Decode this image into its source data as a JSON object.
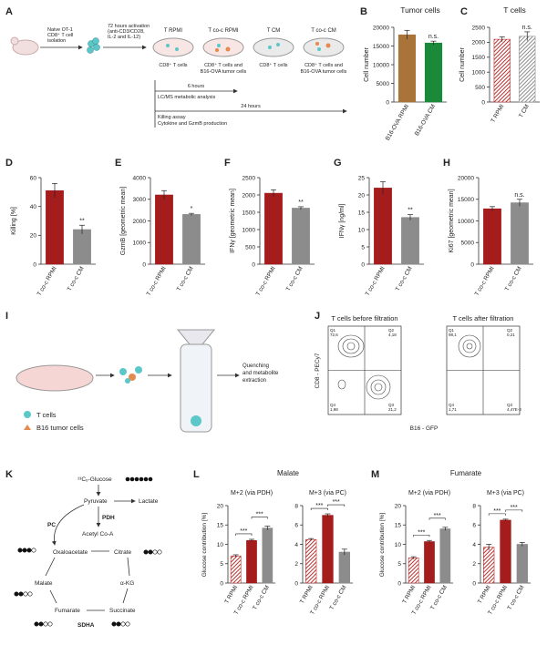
{
  "panel_a": {
    "letter": "A",
    "isolation": [
      "Naive OT-1",
      "CD8⁺ T cell",
      "isolation"
    ],
    "activation": [
      "72 hours activation",
      "(anti-CD3/CD28,",
      "IL-2 and IL-12)"
    ],
    "conditions": [
      {
        "name": "T RPMI",
        "desc": [
          "CD8⁺ T cells"
        ]
      },
      {
        "name": "T co-c RPMI",
        "desc": [
          "CD8⁺ T cells and",
          "B16-OVA tumor cells"
        ]
      },
      {
        "name": "T CM",
        "desc": [
          "CD8⁺ T cells"
        ]
      },
      {
        "name": "T co-c CM",
        "desc": [
          "CD8⁺ T cells and",
          "B16-OVA tumor cells"
        ]
      }
    ],
    "timeline": [
      {
        "duration": "6 hours",
        "assays": [
          "LC/MS metabolic analysis"
        ]
      },
      {
        "duration": "24 hours",
        "assays": [
          "Killing assay",
          "Cytokine and GzmB production"
        ]
      }
    ]
  },
  "chart_data": [
    {
      "type": "bar",
      "panel": "B",
      "title": "Tumor cells",
      "ylabel": "Cell number",
      "categories": [
        "B16-OVA RPMI",
        "B16-OVA CM"
      ],
      "values": [
        18000,
        15800
      ],
      "errors": [
        1200,
        500
      ],
      "colors": [
        "#a8743a",
        "#1a8a3a"
      ],
      "hatch": [
        false,
        false
      ],
      "ylim": [
        0,
        20000
      ],
      "yticks": [
        0,
        5000,
        10000,
        15000,
        20000
      ],
      "annotations": [
        "n.s."
      ]
    },
    {
      "type": "bar",
      "panel": "C",
      "title": "T cells",
      "ylabel": "Cell number",
      "categories": [
        "T RPMI",
        "T CM"
      ],
      "values": [
        2100,
        2200
      ],
      "errors": [
        80,
        150
      ],
      "colors": [
        "#b8312f",
        "#8c8c8c"
      ],
      "hatch": [
        true,
        true
      ],
      "ylim": [
        0,
        2500
      ],
      "yticks": [
        0,
        500,
        1000,
        1500,
        2000,
        2500
      ],
      "annotations": [
        "n.s."
      ]
    },
    {
      "type": "bar",
      "panel": "D",
      "ylabel": "Killing [%]",
      "categories": [
        "T co-c RPMI",
        "T co-c CM"
      ],
      "values": [
        51,
        24
      ],
      "errors": [
        5,
        3
      ],
      "colors": [
        "#a51c1c",
        "#8c8c8c"
      ],
      "hatch": [
        false,
        false
      ],
      "ylim": [
        0,
        60
      ],
      "yticks": [
        0,
        20,
        40,
        60
      ],
      "annotations": [
        "**"
      ]
    },
    {
      "type": "bar",
      "panel": "E",
      "ylabel": "GzmB [geometric mean]",
      "categories": [
        "T co-c RPMI",
        "T co-c CM"
      ],
      "values": [
        3200,
        2300
      ],
      "errors": [
        200,
        50
      ],
      "colors": [
        "#a51c1c",
        "#8c8c8c"
      ],
      "hatch": [
        false,
        false
      ],
      "ylim": [
        0,
        4000
      ],
      "yticks": [
        0,
        1000,
        2000,
        3000,
        4000
      ],
      "annotations": [
        "*"
      ]
    },
    {
      "type": "bar",
      "panel": "F",
      "ylabel": "IFNγ [geometric mean]",
      "categories": [
        "T co-c RPMI",
        "T co-c CM"
      ],
      "values": [
        2050,
        1620
      ],
      "errors": [
        100,
        40
      ],
      "colors": [
        "#a51c1c",
        "#8c8c8c"
      ],
      "hatch": [
        false,
        false
      ],
      "ylim": [
        0,
        2500
      ],
      "yticks": [
        0,
        500,
        1000,
        1500,
        2000,
        2500
      ],
      "annotations": [
        "**"
      ]
    },
    {
      "type": "bar",
      "panel": "G",
      "ylabel": "IFNγ [ng/ml]",
      "categories": [
        "T co-c RPMI",
        "T co-c CM"
      ],
      "values": [
        22,
        13.5
      ],
      "errors": [
        1.8,
        0.8
      ],
      "colors": [
        "#a51c1c",
        "#8c8c8c"
      ],
      "hatch": [
        false,
        false
      ],
      "ylim": [
        0,
        25
      ],
      "yticks": [
        0,
        5,
        10,
        15,
        20,
        25
      ],
      "annotations": [
        "**"
      ]
    },
    {
      "type": "bar",
      "panel": "H",
      "ylabel": "Ki67 [geometric mean]",
      "categories": [
        "T co-c RPMI",
        "T co-c CM"
      ],
      "values": [
        12800,
        14200
      ],
      "errors": [
        500,
        800
      ],
      "colors": [
        "#a51c1c",
        "#8c8c8c"
      ],
      "hatch": [
        false,
        false
      ],
      "ylim": [
        0,
        20000
      ],
      "yticks": [
        0,
        5000,
        10000,
        15000,
        20000
      ],
      "annotations": [
        "n.s."
      ]
    },
    {
      "type": "bar",
      "title": "M+2 (via PDH)",
      "categories": [
        "T RPMI",
        "T co-c RPMI",
        "T co-c CM"
      ],
      "values": [
        7,
        11,
        14.2
      ],
      "errors": [
        0.3,
        0.3,
        0.5
      ],
      "colors": [
        "#b8312f",
        "#a51c1c",
        "#8c8c8c"
      ],
      "hatch": [
        true,
        false,
        false
      ],
      "ylim": [
        0,
        20
      ],
      "yticks": [
        0,
        5,
        10,
        15,
        20
      ],
      "annotations": [
        "***",
        "***"
      ]
    },
    {
      "type": "bar",
      "title": "M+3 (via PC)",
      "categories": [
        "T RPMI",
        "T co-c RPMI",
        "T co-c CM"
      ],
      "values": [
        4.5,
        7,
        3.2
      ],
      "errors": [
        0.1,
        0.15,
        0.3
      ],
      "colors": [
        "#b8312f",
        "#a51c1c",
        "#8c8c8c"
      ],
      "hatch": [
        true,
        false,
        false
      ],
      "ylim": [
        0,
        8
      ],
      "yticks": [
        0,
        2,
        4,
        6,
        8
      ],
      "annotations": [
        "***",
        "***"
      ]
    },
    {
      "type": "bar",
      "title": "M+2 (via PDH)",
      "categories": [
        "T RPMI",
        "T co-c RPMI",
        "T co-c CM"
      ],
      "values": [
        6.5,
        10.7,
        14
      ],
      "errors": [
        0.3,
        0.3,
        0.4
      ],
      "colors": [
        "#b8312f",
        "#a51c1c",
        "#8c8c8c"
      ],
      "hatch": [
        true,
        false,
        false
      ],
      "ylim": [
        0,
        20
      ],
      "yticks": [
        0,
        5,
        10,
        15,
        20
      ],
      "annotations": [
        "***",
        "***"
      ]
    },
    {
      "type": "bar",
      "title": "M+3 (via PC)",
      "categories": [
        "T RPMI",
        "T co-c RPMI",
        "T co-c CM"
      ],
      "values": [
        3.7,
        6.5,
        4
      ],
      "errors": [
        0.3,
        0.1,
        0.2
      ],
      "colors": [
        "#b8312f",
        "#a51c1c",
        "#8c8c8c"
      ],
      "hatch": [
        true,
        false,
        false
      ],
      "ylim": [
        0,
        8
      ],
      "yticks": [
        0,
        2,
        4,
        6,
        8
      ],
      "annotations": [
        "***",
        "***"
      ]
    }
  ],
  "metabolite_groups": [
    {
      "letter": "L",
      "title": "Malate",
      "ylabel": "Glucose contribution [%]"
    },
    {
      "letter": "M",
      "title": "Fumarate",
      "ylabel": "Glucose contribution [%]"
    }
  ],
  "panel_i": {
    "letter": "I",
    "step": [
      "Quenching",
      "and metabolite",
      "extraction"
    ],
    "legend": [
      "T cells",
      "B16 tumor cells"
    ]
  },
  "panel_j": {
    "letter": "J",
    "ylabel": "CD8 - PECy7",
    "xlabel": "B16 - GFP",
    "plots": [
      {
        "title": "T cells before filtration",
        "quadrants": [
          {
            "name": "Q1",
            "value": "72,6"
          },
          {
            "name": "Q2",
            "value": "4,18"
          },
          {
            "name": "Q3",
            "value": "21,2"
          },
          {
            "name": "Q4",
            "value": "1,98"
          }
        ]
      },
      {
        "title": "T cells after filtration",
        "quadrants": [
          {
            "name": "Q1",
            "value": "98,1"
          },
          {
            "name": "Q2",
            "value": "0,21"
          },
          {
            "name": "Q3",
            "value": "4,47E-3"
          },
          {
            "name": "Q4",
            "value": "1,71"
          }
        ]
      }
    ]
  },
  "panel_k": {
    "letter": "K",
    "glucose": "¹³C₆-Glucose",
    "pyruvate": "Pyruvate",
    "lactate": "Lactate",
    "pdh": "PDH",
    "pc": "PC",
    "acetyl": "Acetyl Co-A",
    "oxaloacetate": "Oxaloacetate",
    "citrate": "Citrate",
    "akg": "α-KG",
    "malate": "Malate",
    "succinate": "Succinate",
    "fumarate": "Fumarate",
    "sdha": "SDHA"
  }
}
